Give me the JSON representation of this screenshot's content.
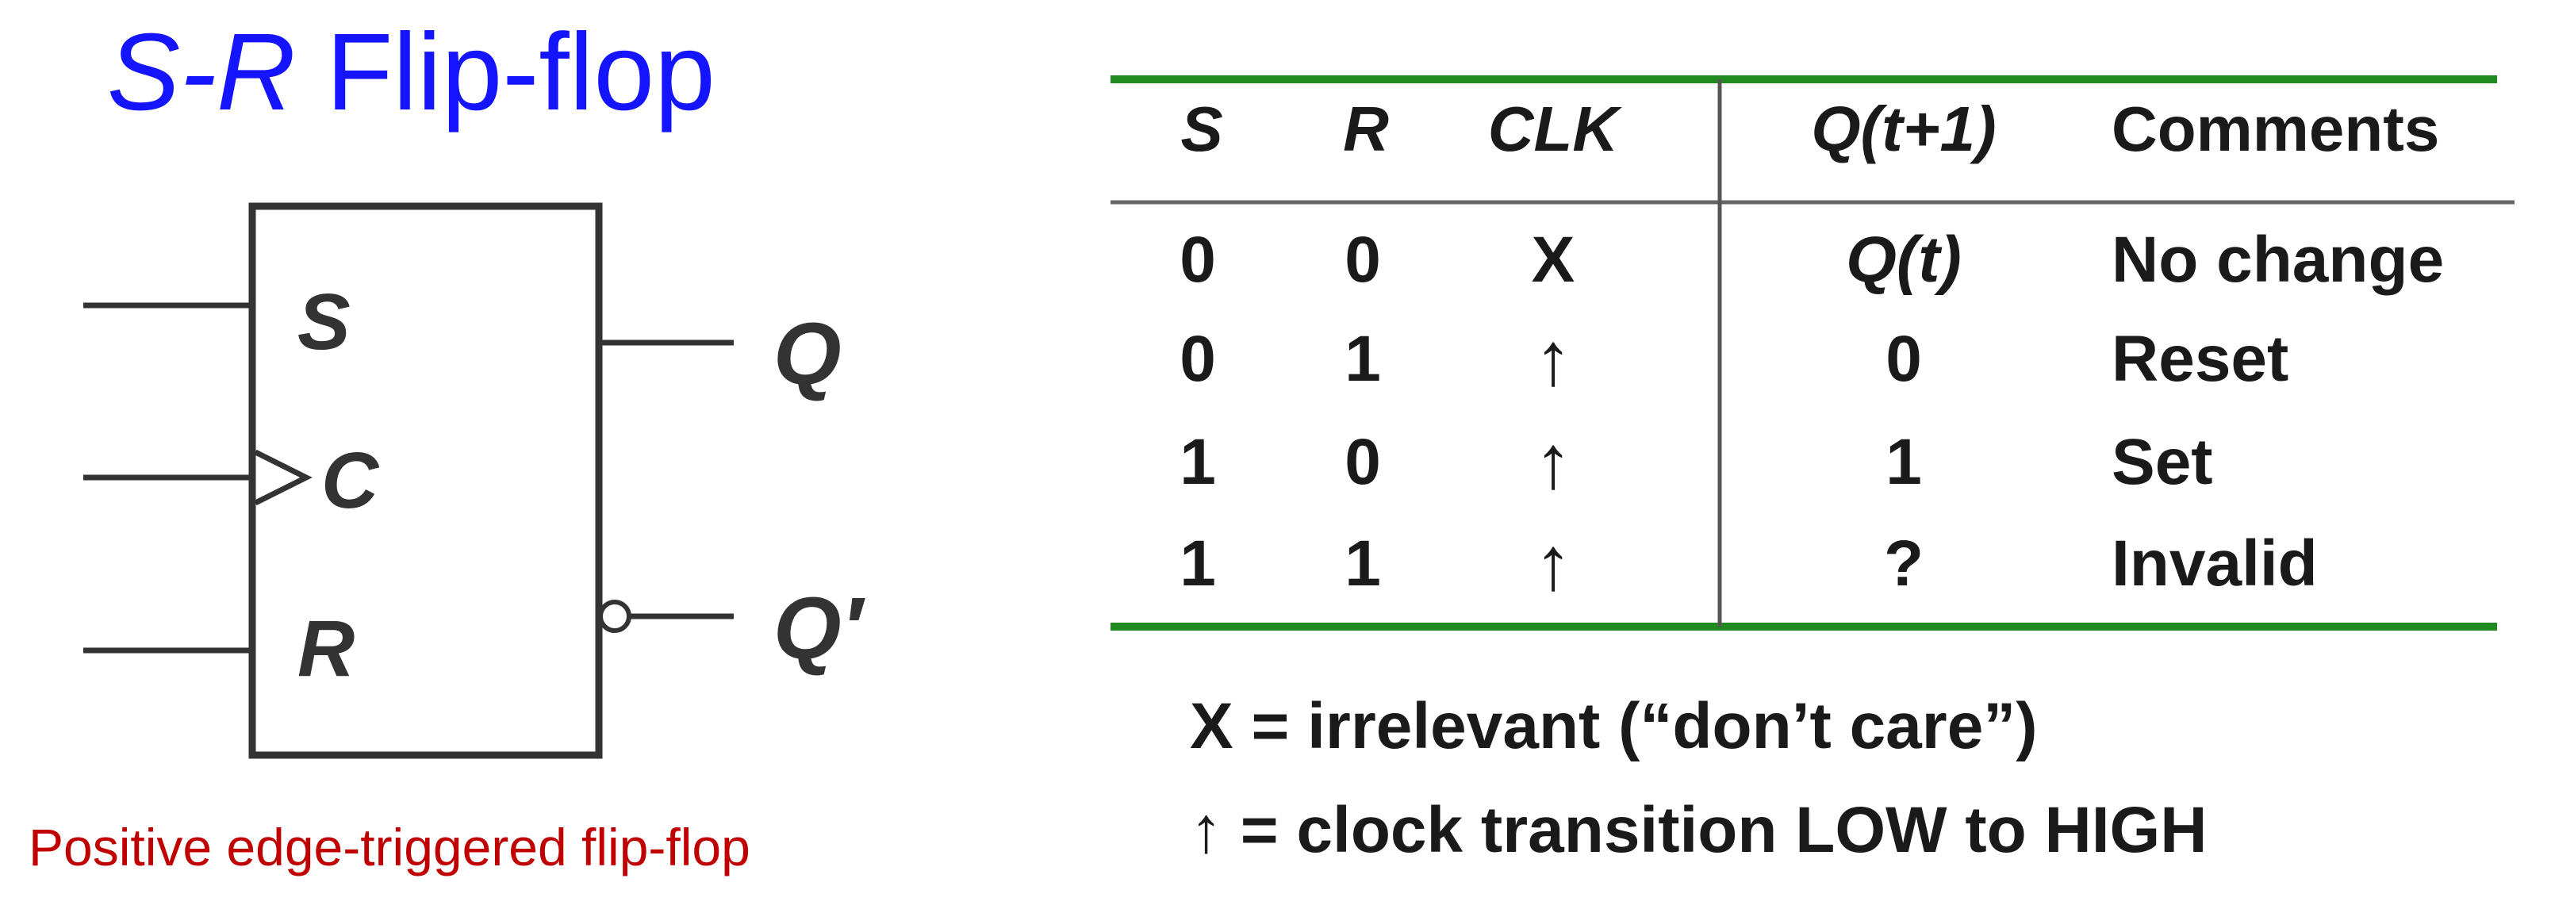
{
  "title": {
    "italic_part": "S-R",
    "rest": " Flip-flop"
  },
  "subtitle": "Positive edge-triggered flip-flop",
  "symbol": {
    "inputs": [
      "S",
      "C",
      "R"
    ],
    "outputs": [
      "Q",
      "Q′"
    ]
  },
  "table": {
    "headers": [
      "S",
      "R",
      "CLK",
      "Q(t+1)",
      "Comments"
    ],
    "rows": [
      [
        "0",
        "0",
        "X",
        "Q(t)",
        "No change"
      ],
      [
        "0",
        "1",
        "↑",
        "0",
        "Reset"
      ],
      [
        "1",
        "0",
        "↑",
        "1",
        "Set"
      ],
      [
        "1",
        "1",
        "↑",
        "?",
        "Invalid"
      ]
    ]
  },
  "legend": [
    "X = irrelevant (“don’t care”)",
    "↑ = clock transition LOW to HIGH"
  ],
  "colors": {
    "title": "#1414ff",
    "subtitle": "#c00000",
    "table_rule": "#1f8a1f"
  }
}
